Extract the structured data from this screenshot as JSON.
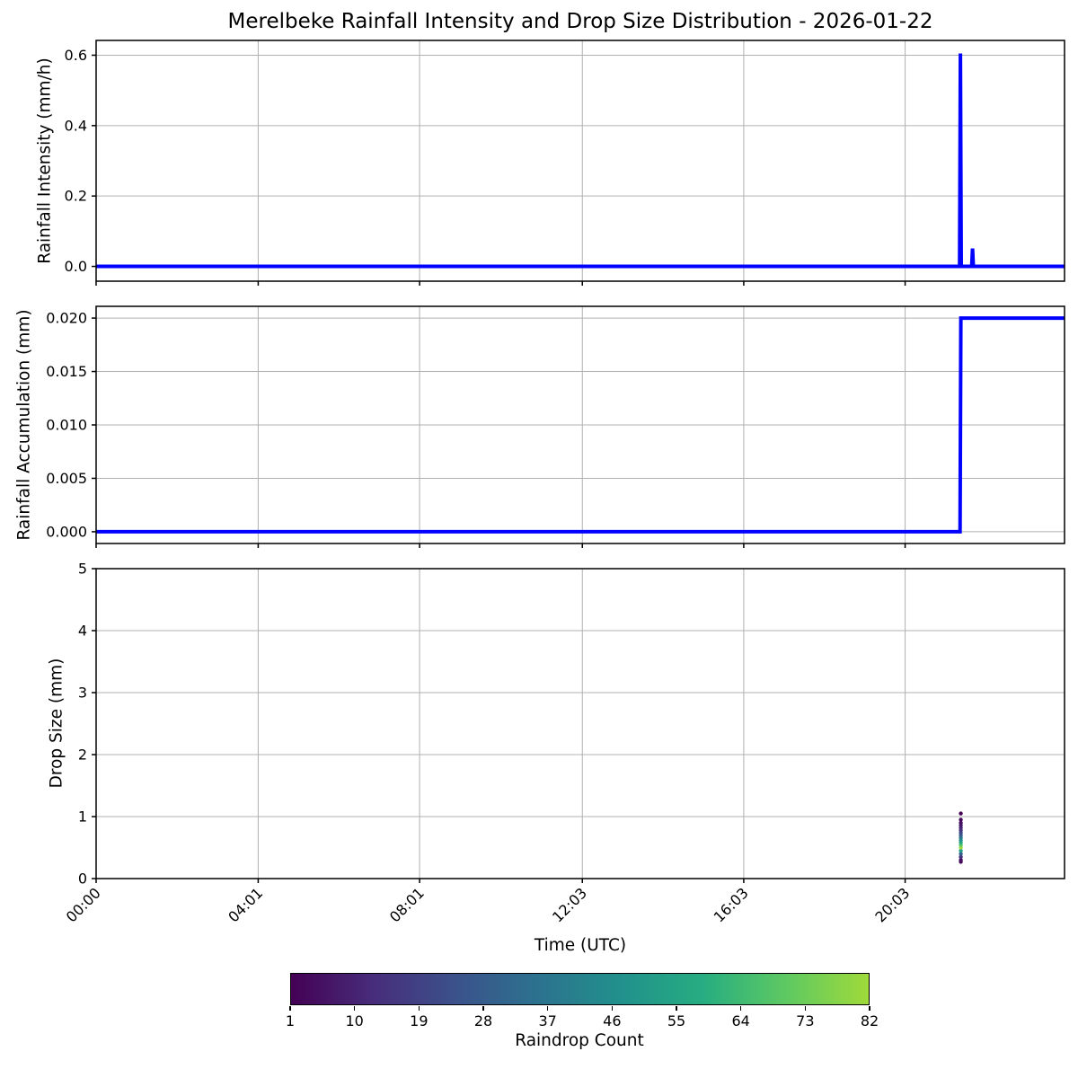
{
  "title": "Merelbeke Rainfall Intensity and Drop Size Distribution - 2026-01-22",
  "xlabel": "Time (UTC)",
  "colors": {
    "line": "#0000ff",
    "grid": "#b0b0b0",
    "axis": "#000000",
    "viridis_stops": [
      "#440154",
      "#472d7b",
      "#3b528b",
      "#2c728e",
      "#21918c",
      "#27ad81",
      "#5ec962",
      "#9fda3a"
    ]
  },
  "time_axis": {
    "xlim": [
      0,
      24
    ],
    "ticks": [
      {
        "t": 0.0,
        "label": "00:00"
      },
      {
        "t": 4.0167,
        "label": "04:01"
      },
      {
        "t": 8.0167,
        "label": "08:01"
      },
      {
        "t": 12.05,
        "label": "12:03"
      },
      {
        "t": 16.05,
        "label": "16:03"
      },
      {
        "t": 20.05,
        "label": "20:03"
      }
    ]
  },
  "chart_data": [
    {
      "type": "line",
      "name": "rainfall-intensity",
      "ylabel": "Rainfall Intensity (mm/h)",
      "ylim": [
        -0.042,
        0.642
      ],
      "grid": true,
      "yticks": [
        {
          "v": 0.0,
          "label": "0.0"
        },
        {
          "v": 0.2,
          "label": "0.2"
        },
        {
          "v": 0.4,
          "label": "0.4"
        },
        {
          "v": 0.6,
          "label": "0.6"
        }
      ],
      "points": [
        [
          0,
          0
        ],
        [
          21.4,
          0
        ],
        [
          21.42,
          0.605
        ],
        [
          21.44,
          0
        ],
        [
          21.7,
          0
        ],
        [
          21.72,
          0.051
        ],
        [
          21.74,
          0
        ],
        [
          24,
          0
        ]
      ]
    },
    {
      "type": "line",
      "name": "rainfall-accumulation",
      "ylabel": "Rainfall Accumulation (mm)",
      "ylim": [
        -0.0011,
        0.0211
      ],
      "grid": true,
      "yticks": [
        {
          "v": 0.0,
          "label": "0.000"
        },
        {
          "v": 0.005,
          "label": "0.005"
        },
        {
          "v": 0.01,
          "label": "0.010"
        },
        {
          "v": 0.015,
          "label": "0.015"
        },
        {
          "v": 0.02,
          "label": "0.020"
        }
      ],
      "points": [
        [
          0,
          0
        ],
        [
          21.41,
          0
        ],
        [
          21.43,
          0.02
        ],
        [
          24,
          0.02
        ]
      ]
    },
    {
      "type": "scatter",
      "name": "drop-size-distribution",
      "ylabel": "Drop Size (mm)",
      "ylim": [
        0,
        5
      ],
      "grid": true,
      "yticks": [
        {
          "v": 0,
          "label": "0"
        },
        {
          "v": 1,
          "label": "1"
        },
        {
          "v": 2,
          "label": "2"
        },
        {
          "v": 3,
          "label": "3"
        },
        {
          "v": 4,
          "label": "4"
        },
        {
          "v": 5,
          "label": "5"
        }
      ],
      "points": [
        {
          "t": 21.43,
          "size": 0.27,
          "count": 2
        },
        {
          "t": 21.43,
          "size": 0.3,
          "count": 5
        },
        {
          "t": 21.43,
          "size": 0.35,
          "count": 14
        },
        {
          "t": 21.43,
          "size": 0.4,
          "count": 30
        },
        {
          "t": 21.43,
          "size": 0.45,
          "count": 52
        },
        {
          "t": 21.43,
          "size": 0.5,
          "count": 82
        },
        {
          "t": 21.43,
          "size": 0.54,
          "count": 70
        },
        {
          "t": 21.43,
          "size": 0.58,
          "count": 58
        },
        {
          "t": 21.43,
          "size": 0.62,
          "count": 47
        },
        {
          "t": 21.43,
          "size": 0.66,
          "count": 38
        },
        {
          "t": 21.43,
          "size": 0.7,
          "count": 29
        },
        {
          "t": 21.43,
          "size": 0.74,
          "count": 22
        },
        {
          "t": 21.43,
          "size": 0.78,
          "count": 16
        },
        {
          "t": 21.43,
          "size": 0.82,
          "count": 11
        },
        {
          "t": 21.43,
          "size": 0.86,
          "count": 8
        },
        {
          "t": 21.43,
          "size": 0.9,
          "count": 5
        },
        {
          "t": 21.43,
          "size": 0.95,
          "count": 3
        },
        {
          "t": 21.43,
          "size": 1.05,
          "count": 1
        }
      ]
    }
  ],
  "colorbar": {
    "label": "Raindrop Count",
    "min": 1,
    "max": 82,
    "ticks": [
      1,
      10,
      19,
      28,
      37,
      46,
      55,
      64,
      73,
      82
    ]
  }
}
